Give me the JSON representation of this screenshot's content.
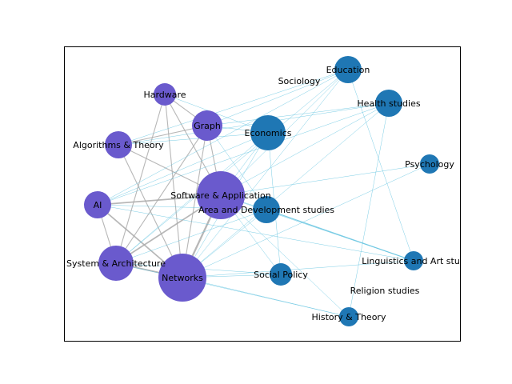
{
  "colors": {
    "cs_node": "#6a5acd",
    "other_node": "#1f77b4",
    "cross_edge": "#5bc0de",
    "cs_edge": "#aaaaaa",
    "frame": "#000000"
  },
  "nodes": [
    {
      "id": "hardware",
      "label": "Hardware",
      "group": "cs",
      "size": 2
    },
    {
      "id": "graph",
      "label": "Graph",
      "group": "cs",
      "size": 4
    },
    {
      "id": "algorithms",
      "label": "Algorithms & Theory",
      "group": "cs",
      "size": 3
    },
    {
      "id": "ai",
      "label": "AI",
      "group": "cs",
      "size": 3
    },
    {
      "id": "software",
      "label": "Software & Application",
      "group": "cs",
      "size": 9
    },
    {
      "id": "system",
      "label": "System & Architecture",
      "group": "cs",
      "size": 5
    },
    {
      "id": "networks",
      "label": "Networks",
      "group": "cs",
      "size": 9
    },
    {
      "id": "education",
      "label": "Education",
      "group": "other",
      "size": 3
    },
    {
      "id": "sociology",
      "label": "Sociology",
      "group": "other",
      "size": 0
    },
    {
      "id": "health",
      "label": "Health studies",
      "group": "other",
      "size": 3
    },
    {
      "id": "economics",
      "label": "Economics",
      "group": "other",
      "size": 5
    },
    {
      "id": "psychology",
      "label": "Psychology",
      "group": "other",
      "size": 1
    },
    {
      "id": "area",
      "label": "Area and Development studies",
      "group": "other",
      "size": 3
    },
    {
      "id": "linguistics",
      "label": "Linguistics and Art stud",
      "group": "other",
      "size": 1
    },
    {
      "id": "social",
      "label": "Social Policy",
      "group": "other",
      "size": 2
    },
    {
      "id": "religion",
      "label": "Religion studies",
      "group": "other",
      "size": 0
    },
    {
      "id": "history",
      "label": "History & Theory",
      "group": "other",
      "size": 1
    }
  ],
  "edges": [
    {
      "a": "software",
      "b": "networks",
      "w": 3
    },
    {
      "a": "software",
      "b": "ai",
      "w": 2
    },
    {
      "a": "software",
      "b": "system",
      "w": 2
    },
    {
      "a": "networks",
      "b": "system",
      "w": 2
    },
    {
      "a": "ai",
      "b": "networks",
      "w": 2
    },
    {
      "a": "algorithms",
      "b": "software",
      "w": 1
    },
    {
      "a": "graph",
      "b": "software",
      "w": 1
    },
    {
      "a": "hardware",
      "b": "software",
      "w": 1
    },
    {
      "a": "hardware",
      "b": "networks",
      "w": 1
    },
    {
      "a": "graph",
      "b": "networks",
      "w": 1
    },
    {
      "a": "algorithms",
      "b": "networks",
      "w": 1
    },
    {
      "a": "ai",
      "b": "system",
      "w": 1
    },
    {
      "a": "graph",
      "b": "system",
      "w": 1
    },
    {
      "a": "algorithms",
      "b": "graph",
      "w": 1
    },
    {
      "a": "hardware",
      "b": "graph",
      "w": 1
    },
    {
      "a": "education",
      "b": "linguistics",
      "w": 1
    },
    {
      "a": "education",
      "b": "software",
      "w": 1
    },
    {
      "a": "education",
      "b": "networks",
      "w": 1
    },
    {
      "a": "education",
      "b": "system",
      "w": 1
    },
    {
      "a": "education",
      "b": "ai",
      "w": 1
    },
    {
      "a": "education",
      "b": "graph",
      "w": 1
    },
    {
      "a": "education",
      "b": "algorithms",
      "w": 1
    },
    {
      "a": "health",
      "b": "software",
      "w": 1
    },
    {
      "a": "health",
      "b": "networks",
      "w": 1
    },
    {
      "a": "health",
      "b": "ai",
      "w": 1
    },
    {
      "a": "health",
      "b": "algorithms",
      "w": 1
    },
    {
      "a": "health",
      "b": "graph",
      "w": 1
    },
    {
      "a": "economics",
      "b": "software",
      "w": 1
    },
    {
      "a": "economics",
      "b": "networks",
      "w": 1
    },
    {
      "a": "economics",
      "b": "system",
      "w": 1
    },
    {
      "a": "economics",
      "b": "ai",
      "w": 1
    },
    {
      "a": "economics",
      "b": "graph",
      "w": 1
    },
    {
      "a": "economics",
      "b": "hardware",
      "w": 1
    },
    {
      "a": "economics",
      "b": "algorithms",
      "w": 1
    },
    {
      "a": "area",
      "b": "software",
      "w": 1
    },
    {
      "a": "area",
      "b": "networks",
      "w": 1
    },
    {
      "a": "area",
      "b": "linguistics",
      "w": 2
    },
    {
      "a": "area",
      "b": "ai",
      "w": 1
    },
    {
      "a": "area",
      "b": "system",
      "w": 1
    },
    {
      "a": "ai",
      "b": "linguistics",
      "w": 1
    },
    {
      "a": "social",
      "b": "software",
      "w": 1
    },
    {
      "a": "social",
      "b": "networks",
      "w": 1
    },
    {
      "a": "social",
      "b": "system",
      "w": 1
    },
    {
      "a": "networks",
      "b": "linguistics",
      "w": 1
    },
    {
      "a": "networks",
      "b": "history",
      "w": 1
    },
    {
      "a": "software",
      "b": "history",
      "w": 1
    },
    {
      "a": "system",
      "b": "history",
      "w": 1
    },
    {
      "a": "psychology",
      "b": "software",
      "w": 1
    },
    {
      "a": "psychology",
      "b": "networks",
      "w": 1
    },
    {
      "a": "health",
      "b": "history",
      "w": 1
    },
    {
      "a": "economics",
      "b": "social",
      "w": 1
    },
    {
      "a": "software",
      "b": "linguistics",
      "w": 1
    },
    {
      "a": "graph",
      "b": "area",
      "w": 1
    },
    {
      "a": "hardware",
      "b": "system",
      "w": 1
    }
  ]
}
